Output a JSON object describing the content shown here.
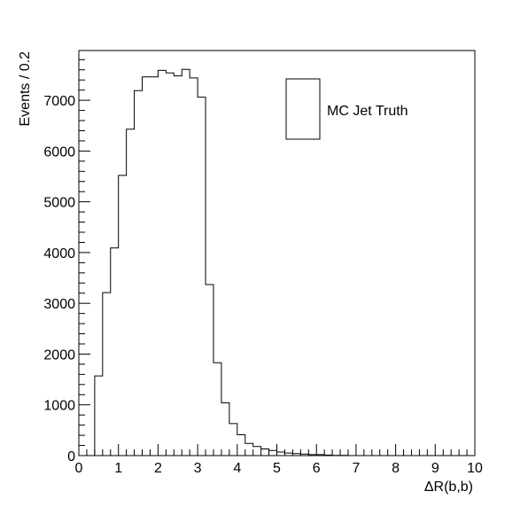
{
  "chart_data": {
    "type": "histogram",
    "xlabel": "ΔR(b,b)",
    "ylabel": "Events / 0.2",
    "xlim": [
      0,
      10
    ],
    "ylim": [
      0,
      7980
    ],
    "grid": false,
    "legend_position": "top-right",
    "x_ticks": [
      "0",
      "1",
      "2",
      "3",
      "4",
      "5",
      "6",
      "7",
      "8",
      "9",
      "10"
    ],
    "y_ticks": [
      "0",
      "1000",
      "2000",
      "3000",
      "4000",
      "5000",
      "6000",
      "7000"
    ],
    "bin_width": 0.2,
    "series": [
      {
        "name": "MC Jet Truth",
        "bin_edges_start": 0,
        "values": [
          0,
          0,
          1570,
          3210,
          4090,
          5520,
          6430,
          7190,
          7460,
          7460,
          7590,
          7540,
          7480,
          7610,
          7440,
          7060,
          3370,
          1830,
          1040,
          630,
          410,
          240,
          180,
          130,
          100,
          70,
          50,
          40,
          30,
          20,
          20,
          10,
          5,
          5,
          0,
          0,
          0,
          0,
          0,
          0,
          0,
          0,
          0,
          0,
          0,
          0,
          0,
          0,
          0,
          0
        ]
      }
    ]
  },
  "legend": {
    "label": "MC Jet Truth"
  }
}
